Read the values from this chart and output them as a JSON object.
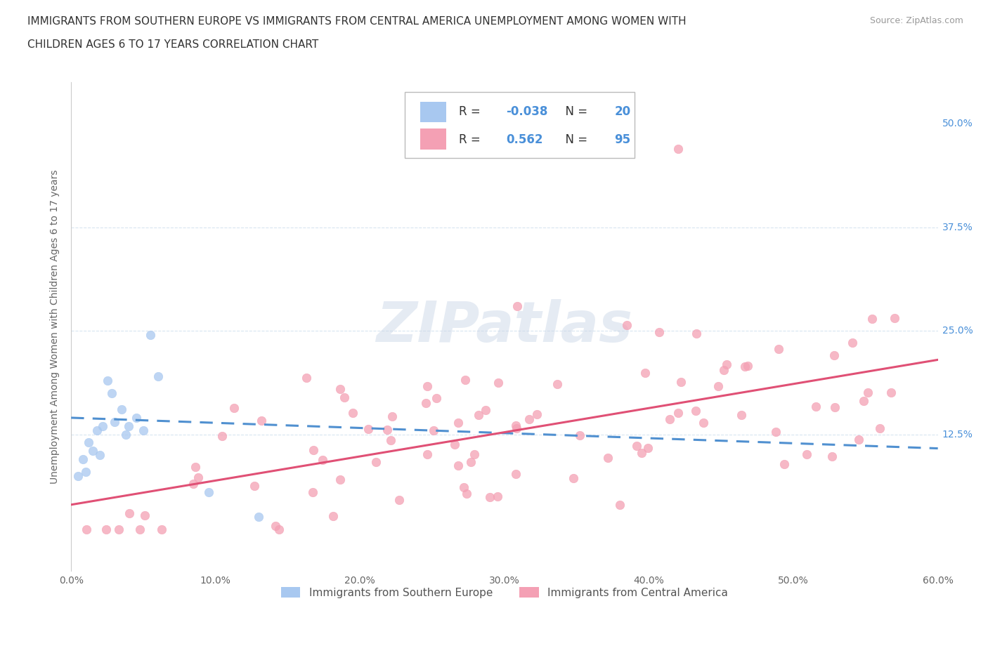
{
  "title_line1": "IMMIGRANTS FROM SOUTHERN EUROPE VS IMMIGRANTS FROM CENTRAL AMERICA UNEMPLOYMENT AMONG WOMEN WITH",
  "title_line2": "CHILDREN AGES 6 TO 17 YEARS CORRELATION CHART",
  "source": "Source: ZipAtlas.com",
  "ylabel": "Unemployment Among Women with Children Ages 6 to 17 years",
  "legend_label1": "Immigrants from Southern Europe",
  "legend_label2": "Immigrants from Central America",
  "R1": -0.038,
  "N1": 20,
  "R2": 0.562,
  "N2": 95,
  "color1": "#a8c8f0",
  "color2": "#f4a0b4",
  "trendline1_color": "#5090d0",
  "trendline2_color": "#e05075",
  "xlim": [
    0.0,
    0.6
  ],
  "ylim": [
    -0.04,
    0.55
  ],
  "xticks": [
    0.0,
    0.1,
    0.2,
    0.3,
    0.4,
    0.5,
    0.6
  ],
  "xticklabels": [
    "0.0%",
    "10.0%",
    "20.0%",
    "30.0%",
    "40.0%",
    "50.0%",
    "60.0%"
  ],
  "yticks": [
    0.0,
    0.125,
    0.25,
    0.375,
    0.5
  ],
  "yticklabels": [
    "",
    "12.5%",
    "25.0%",
    "37.5%",
    "50.0%"
  ],
  "grid_color": "#d8e4f0",
  "background_color": "#ffffff",
  "watermark": "ZIPatlas",
  "trendline1_x0": 0.0,
  "trendline1_y0": 0.145,
  "trendline1_x1": 0.6,
  "trendline1_y1": 0.108,
  "trendline2_x0": 0.0,
  "trendline2_y0": 0.04,
  "trendline2_x1": 0.6,
  "trendline2_y1": 0.215
}
